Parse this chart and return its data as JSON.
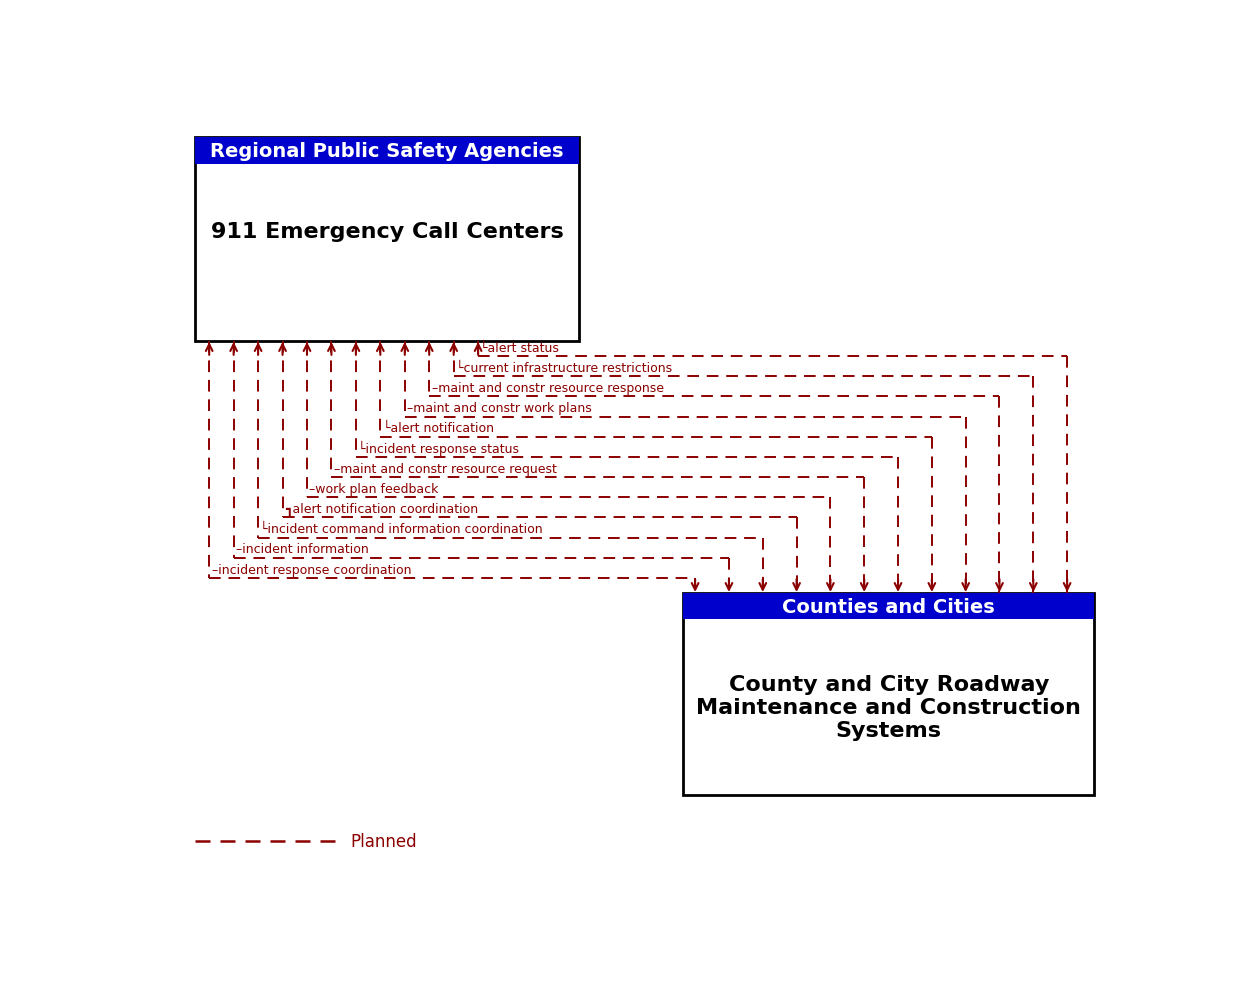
{
  "box1_header": "Regional Public Safety Agencies",
  "box1_body": "911 Emergency Call Centers",
  "box1_header_color": "#0000CC",
  "box2_header": "Counties and Cities",
  "box2_body": "County and City Roadway\nMaintenance and Construction\nSystems",
  "box2_header_color": "#0000CC",
  "arrow_color": "#8B0000",
  "background_color": "#FFFFFF",
  "legend_planned_label": "Planned",
  "flow_labels": [
    "└alert status",
    "└current infrastructure restrictions",
    "–maint and constr resource response",
    "–maint and constr work plans",
    "└alert notification",
    "└incident response status",
    "–maint and constr resource request",
    "–work plan feedback",
    "┓alert notification coordination",
    "└incident command information coordination",
    "–incident information",
    "–incident response coordination"
  ]
}
